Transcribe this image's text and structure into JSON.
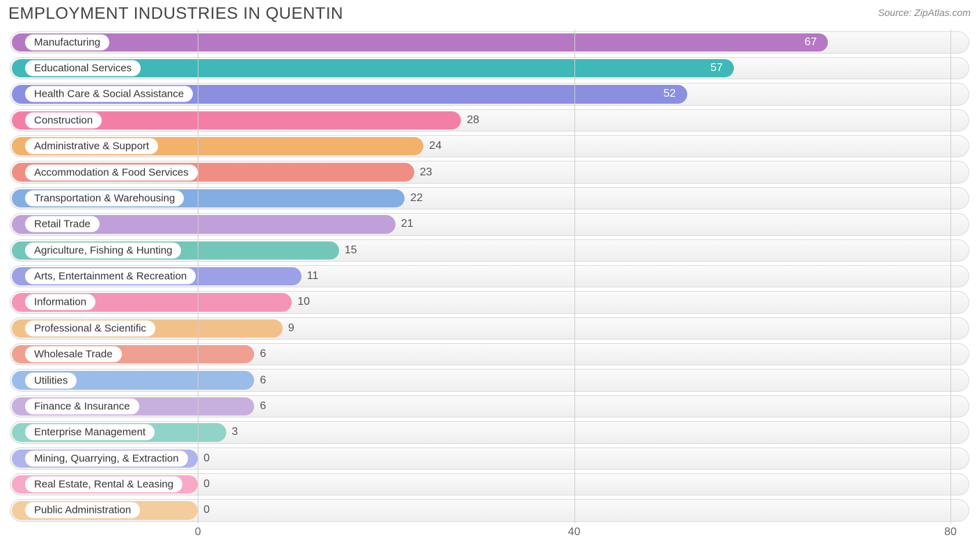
{
  "title": "EMPLOYMENT INDUSTRIES IN QUENTIN",
  "source": "Source: ZipAtlas.com",
  "chart": {
    "type": "bar-horizontal",
    "background_color": "#ffffff",
    "track_border_color": "#dcdcdc",
    "track_fill_top": "#fafafa",
    "track_fill_bottom": "#efefef",
    "grid_color": "#d0d0d0",
    "title_fontsize": 24,
    "title_color": "#444444",
    "source_fontsize": 14,
    "source_color": "#888888",
    "label_fontsize": 15,
    "value_fontsize": 16,
    "value_color": "#555555",
    "bar_radius": 999,
    "xlim": [
      -20,
      82
    ],
    "xticks": [
      0,
      40,
      80
    ],
    "series": [
      {
        "label": "Manufacturing",
        "value": 67,
        "color": "#b678c2",
        "value_text_color": "#ffffff"
      },
      {
        "label": "Educational Services",
        "value": 57,
        "color": "#3fb8b8",
        "value_text_color": "#ffffff"
      },
      {
        "label": "Health Care & Social Assistance",
        "value": 52,
        "color": "#8a8fe0",
        "value_text_color": "#ffffff"
      },
      {
        "label": "Construction",
        "value": 28,
        "color": "#f47fa6",
        "value_text_color": "#555555"
      },
      {
        "label": "Administrative & Support",
        "value": 24,
        "color": "#f2b26b",
        "value_text_color": "#555555"
      },
      {
        "label": "Accommodation & Food Services",
        "value": 23,
        "color": "#ef8f84",
        "value_text_color": "#555555"
      },
      {
        "label": "Transportation & Warehousing",
        "value": 22,
        "color": "#84aee3",
        "value_text_color": "#555555"
      },
      {
        "label": "Retail Trade",
        "value": 21,
        "color": "#bfa0d8",
        "value_text_color": "#555555"
      },
      {
        "label": "Agriculture, Fishing & Hunting",
        "value": 15,
        "color": "#72c7b8",
        "value_text_color": "#555555"
      },
      {
        "label": "Arts, Entertainment & Recreation",
        "value": 11,
        "color": "#9ca0e6",
        "value_text_color": "#555555"
      },
      {
        "label": "Information",
        "value": 10,
        "color": "#f494b7",
        "value_text_color": "#555555"
      },
      {
        "label": "Professional & Scientific",
        "value": 9,
        "color": "#f2c18a",
        "value_text_color": "#555555"
      },
      {
        "label": "Wholesale Trade",
        "value": 6,
        "color": "#f0a091",
        "value_text_color": "#555555"
      },
      {
        "label": "Utilities",
        "value": 6,
        "color": "#9bbce8",
        "value_text_color": "#555555"
      },
      {
        "label": "Finance & Insurance",
        "value": 6,
        "color": "#c7b0de",
        "value_text_color": "#555555"
      },
      {
        "label": "Enterprise Management",
        "value": 3,
        "color": "#8fd4c7",
        "value_text_color": "#555555"
      },
      {
        "label": "Mining, Quarrying, & Extraction",
        "value": 0,
        "color": "#b0b4ec",
        "value_text_color": "#555555"
      },
      {
        "label": "Real Estate, Rental & Leasing",
        "value": 0,
        "color": "#f7a9c5",
        "value_text_color": "#555555"
      },
      {
        "label": "Public Administration",
        "value": 0,
        "color": "#f4cd9e",
        "value_text_color": "#555555"
      }
    ]
  }
}
